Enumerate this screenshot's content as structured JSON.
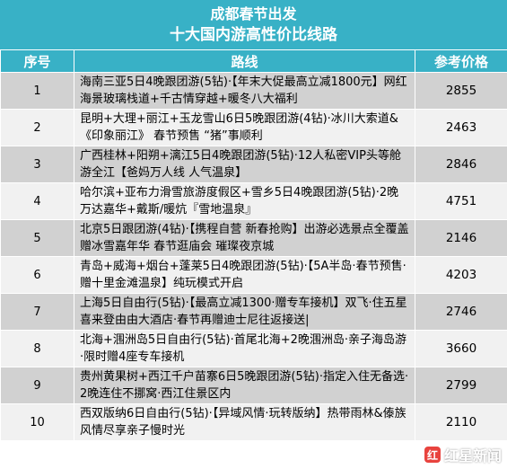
{
  "title_line1": "成都春节出发",
  "title_line2": "十大国内游高性价比线路",
  "headers": {
    "index": "序号",
    "route": "路线",
    "price": "参考价格"
  },
  "rows": [
    {
      "index": "1",
      "route": "海南三亚5日4晚跟团游(5钻)·【年末大促最高立减1800元】网红海景玻璃栈道+千古情穿越+暖冬八大福利",
      "price": "2855"
    },
    {
      "index": "2",
      "route": "昆明+大理+丽江+玉龙雪山6日5晚跟团游(4钻)·冰川大索道&《印象丽江》 春节预售 “猪”事顺利",
      "price": "2463"
    },
    {
      "index": "3",
      "route": "广西桂林+阳朔+漓江5日4晚跟团游(5钻)·12人私密VIP头等舱游全江【爸妈万人线 人气温泉】",
      "price": "2846"
    },
    {
      "index": "4",
      "route": "哈尔滨+亚布力滑雪旅游度假区+雪乡5日4晚跟团游(5钻)·2晚万达嘉华+戴斯/暖炕『雪地温泉』",
      "price": "4751"
    },
    {
      "index": "5",
      "route": "北京5日跟团游(4钻)·【携程自营 新春抢购】出游必选景点全覆盖 赠冰雪嘉年华 春节逛庙会 璀璨夜京城",
      "price": "2146"
    },
    {
      "index": "6",
      "route": "青岛+威海+烟台+蓬莱5日4晚跟团游(5钻)·【5A半岛·春节预售·赠十里金滩温泉】纯玩模式开启",
      "price": "4203"
    },
    {
      "index": "7",
      "route": "上海5日自由行(5钻)·【最高立减1300·赠专车接机】双飞·住五星喜来登由由大酒店·春节再赠迪士尼往返接送|",
      "price": "2746"
    },
    {
      "index": "8",
      "route": "北海+涠洲岛5日自由行(5钻)·首尾北海+2晚涠洲岛·亲子海岛游·限时赠4座专车接机",
      "price": "3660"
    },
    {
      "index": "9",
      "route": "贵州黄果树+西江千户苗寨6日5晚跟团游(5钻)·指定入住无备选·2晚连住不挪窝·西江住景区内",
      "price": "2799"
    },
    {
      "index": "10",
      "route": "西双版纳6日自由行(5钻)·【异域风情·玩转版纳】热带雨林&傣族风情尽享亲子慢时光",
      "price": "2110"
    }
  ],
  "watermark": {
    "logo_char": "红",
    "text": "红星新闻"
  }
}
